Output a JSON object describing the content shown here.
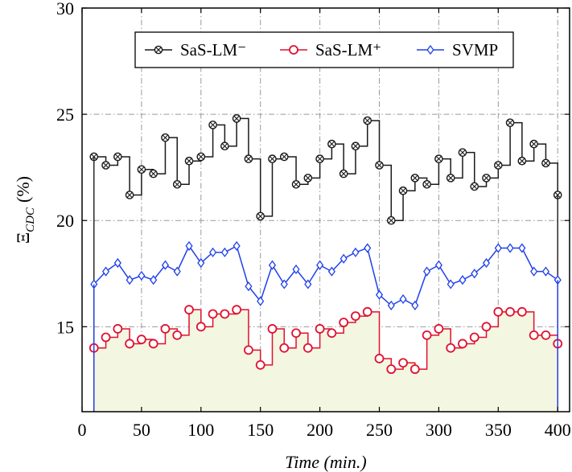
{
  "chart_data": {
    "type": "line",
    "title": "",
    "xlabel": "Time (min.)",
    "ylabel": "Ξ_CDC (%)",
    "ylabel_main": "Ξ",
    "ylabel_sub": "CDC",
    "ylabel_unit": "(%)",
    "xlim": [
      0,
      410
    ],
    "ylim": [
      11,
      30
    ],
    "xticks": [
      0,
      50,
      100,
      150,
      200,
      250,
      300,
      350,
      400
    ],
    "yticks": [
      15,
      20,
      25,
      30
    ],
    "grid": true,
    "legend_position": "top-center",
    "x": [
      10,
      20,
      30,
      40,
      50,
      60,
      70,
      80,
      90,
      100,
      110,
      120,
      130,
      140,
      150,
      160,
      170,
      180,
      190,
      200,
      210,
      220,
      230,
      240,
      250,
      260,
      270,
      280,
      290,
      300,
      310,
      320,
      330,
      340,
      350,
      360,
      370,
      380,
      390,
      400
    ],
    "series": [
      {
        "name": "SaS-LM⁻",
        "color": "#1a1a1a",
        "marker": "otimes",
        "step": true,
        "values": [
          23.0,
          22.6,
          23.0,
          21.2,
          22.4,
          22.2,
          23.9,
          21.7,
          22.8,
          23.0,
          24.5,
          23.5,
          24.8,
          22.9,
          20.2,
          22.9,
          23.0,
          21.7,
          22.0,
          22.9,
          23.6,
          22.2,
          23.5,
          24.7,
          22.6,
          20.0,
          21.4,
          22.0,
          21.7,
          22.9,
          22.0,
          23.2,
          21.6,
          22.0,
          22.6,
          24.6,
          22.8,
          23.6,
          22.7,
          21.2
        ]
      },
      {
        "name": "SaS-LM⁺",
        "color": "#e0102e",
        "marker": "circle",
        "step": true,
        "values": [
          14.0,
          14.5,
          14.9,
          14.2,
          14.4,
          14.2,
          14.9,
          14.6,
          15.8,
          15.0,
          15.6,
          15.6,
          15.8,
          13.9,
          13.2,
          14.9,
          14.0,
          14.7,
          14.0,
          14.9,
          14.7,
          15.2,
          15.5,
          15.7,
          13.5,
          13.0,
          13.3,
          13.0,
          14.6,
          14.9,
          14.0,
          14.2,
          14.5,
          15.0,
          15.7,
          15.7,
          15.7,
          14.6,
          14.6,
          14.2
        ]
      },
      {
        "name": "SVMP",
        "color": "#2040e8",
        "marker": "diamond",
        "step": false,
        "values": [
          17.0,
          17.6,
          18.0,
          17.2,
          17.4,
          17.2,
          17.9,
          17.6,
          18.8,
          18.0,
          18.5,
          18.5,
          18.8,
          16.9,
          16.2,
          17.9,
          17.0,
          17.7,
          17.0,
          17.9,
          17.6,
          18.2,
          18.5,
          18.7,
          16.5,
          16.0,
          16.3,
          16.0,
          17.6,
          17.9,
          17.0,
          17.2,
          17.5,
          18.0,
          18.7,
          18.7,
          18.7,
          17.6,
          17.6,
          17.2
        ]
      }
    ]
  }
}
